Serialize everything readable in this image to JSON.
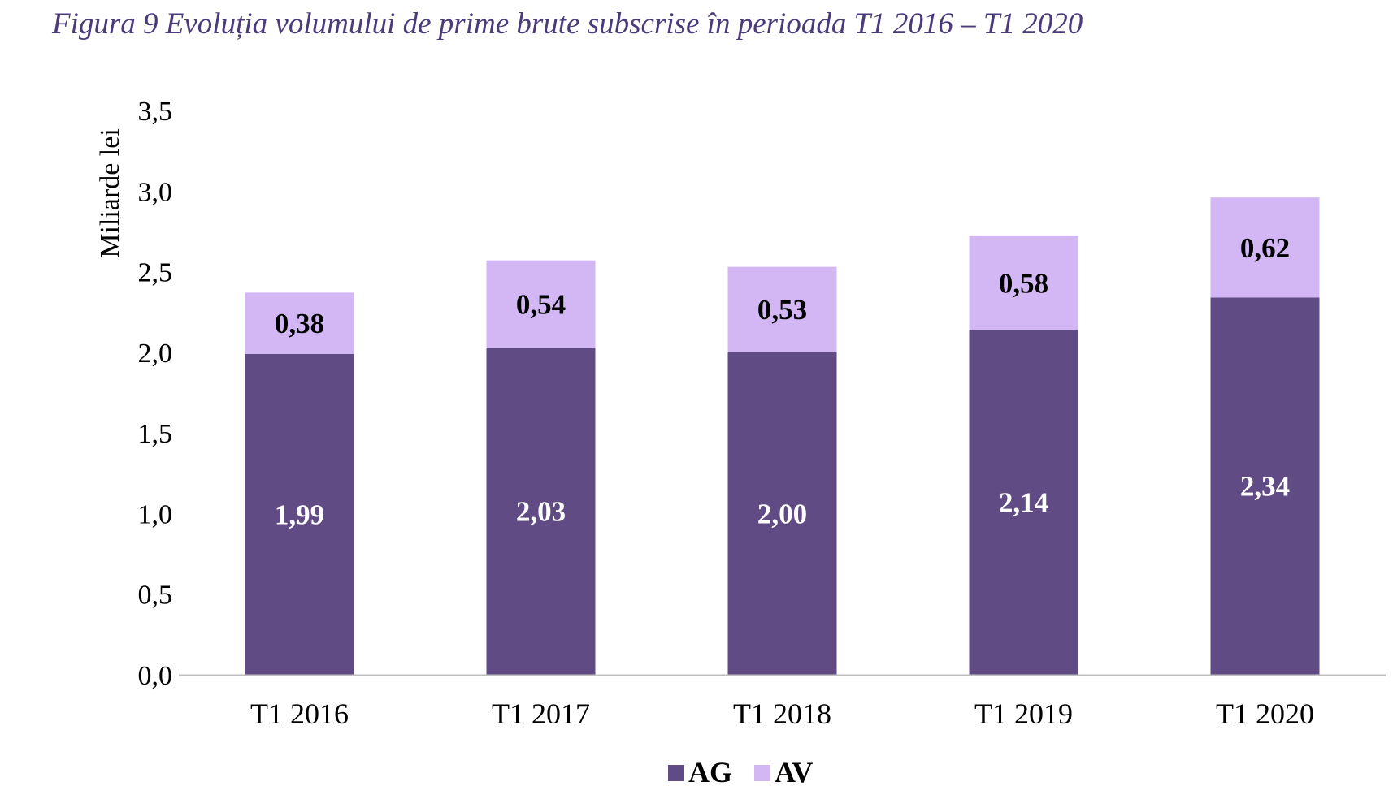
{
  "figure": {
    "title": "Figura 9 Evoluția volumului de prime brute subscrise în perioada T1 2016 – T1 2020"
  },
  "chart_data": {
    "type": "bar",
    "stacked": true,
    "title": "",
    "xlabel": "",
    "ylabel": "Miliarde lei",
    "ylim": [
      0,
      3.5
    ],
    "yticks": [
      "0,0",
      "0,5",
      "1,0",
      "1,5",
      "2,0",
      "2,5",
      "3,0",
      "3,5"
    ],
    "grid": false,
    "legend_position": "bottom",
    "categories": [
      "T1 2016",
      "T1 2017",
      "T1 2018",
      "T1 2019",
      "T1 2020"
    ],
    "series": [
      {
        "name": "AG",
        "color": "#614b85",
        "label_color": "#ffffff",
        "values": [
          1.99,
          2.03,
          2.0,
          2.14,
          2.34
        ],
        "labels": [
          "1,99",
          "2,03",
          "2,00",
          "2,14",
          "2,34"
        ]
      },
      {
        "name": "AV",
        "color": "#d3b7f5",
        "label_color": "#000000",
        "values": [
          0.38,
          0.54,
          0.53,
          0.58,
          0.62
        ],
        "labels": [
          "0,38",
          "0,54",
          "0,53",
          "0,58",
          "0,62"
        ]
      }
    ]
  }
}
